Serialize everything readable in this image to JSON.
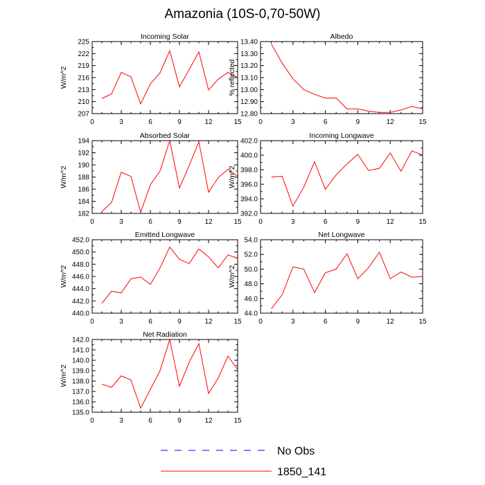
{
  "title": "Amazonia (10S-0,70-50W)",
  "colors": {
    "model": "#ff0000",
    "obs": "#0000ff",
    "axis": "#000000"
  },
  "legend": [
    {
      "label": "No Obs",
      "style": "dashed",
      "color": "#0000ff"
    },
    {
      "label": "1850_141",
      "style": "solid",
      "color": "#ff0000"
    }
  ],
  "chart_data": [
    {
      "type": "line",
      "title": "Incoming Solar",
      "ylabel": "W/m^2",
      "ylim": [
        207,
        225
      ],
      "yticks": [
        "207",
        "210",
        "213",
        "216",
        "219",
        "222",
        "225"
      ],
      "xlim": [
        0,
        15
      ],
      "xticks": [
        "0",
        "3",
        "6",
        "9",
        "12",
        "15"
      ],
      "x": [
        1,
        2,
        3,
        4,
        5,
        6,
        7,
        8,
        9,
        10,
        11,
        12,
        13,
        14,
        15
      ],
      "series": [
        {
          "values": [
            210.8,
            211.9,
            217.3,
            216.2,
            209.4,
            214.4,
            217.2,
            222.7,
            213.7,
            218.0,
            222.4,
            212.9,
            215.6,
            217.3,
            216.0
          ]
        }
      ]
    },
    {
      "type": "line",
      "title": "Albedo",
      "ylabel": "% reflected",
      "ylim": [
        12.8,
        13.4
      ],
      "yticks": [
        "12.80",
        "12.90",
        "13.00",
        "13.10",
        "13.20",
        "13.30",
        "13.40"
      ],
      "xlim": [
        0,
        15
      ],
      "xticks": [
        "0",
        "3",
        "6",
        "9",
        "12",
        "15"
      ],
      "x": [
        1,
        2,
        3,
        4,
        5,
        6,
        7,
        8,
        9,
        10,
        11,
        12,
        13,
        14,
        15
      ],
      "series": [
        {
          "values": [
            13.38,
            13.22,
            13.09,
            13.0,
            12.96,
            12.93,
            12.93,
            12.84,
            12.84,
            12.82,
            12.81,
            12.81,
            12.83,
            12.86,
            12.84
          ]
        }
      ]
    },
    {
      "type": "line",
      "title": "Absorbed Solar",
      "ylabel": "W/m^2",
      "ylim": [
        182,
        194
      ],
      "yticks": [
        "182",
        "184",
        "186",
        "188",
        "190",
        "192",
        "194"
      ],
      "xlim": [
        0,
        15
      ],
      "xticks": [
        "0",
        "3",
        "6",
        "9",
        "12",
        "15"
      ],
      "x": [
        1,
        2,
        3,
        4,
        5,
        6,
        7,
        8,
        9,
        10,
        11,
        12,
        13,
        14,
        15
      ],
      "series": [
        {
          "values": [
            182.3,
            183.8,
            188.8,
            188.1,
            182.2,
            186.7,
            189.0,
            194.0,
            186.2,
            189.9,
            193.8,
            185.5,
            187.9,
            189.3,
            188.1
          ]
        }
      ]
    },
    {
      "type": "line",
      "title": "Incoming Longwave",
      "ylabel": "W/m^2",
      "ylim": [
        392,
        402
      ],
      "yticks": [
        "392.0",
        "394.0",
        "396.0",
        "398.0",
        "400.0",
        "402.0"
      ],
      "xlim": [
        0,
        15
      ],
      "xticks": [
        "0",
        "3",
        "6",
        "9",
        "12",
        "15"
      ],
      "x": [
        1,
        2,
        3,
        4,
        5,
        6,
        7,
        8,
        9,
        10,
        11,
        12,
        13,
        14,
        15
      ],
      "series": [
        {
          "values": [
            397.0,
            397.1,
            393.0,
            395.6,
            399.1,
            395.3,
            397.3,
            398.8,
            400.1,
            397.9,
            398.2,
            400.3,
            397.8,
            400.6,
            400.0
          ]
        }
      ]
    },
    {
      "type": "line",
      "title": "Emitted Longwave",
      "ylabel": "W/m^2",
      "ylim": [
        440,
        452
      ],
      "yticks": [
        "440.0",
        "442.0",
        "444.0",
        "446.0",
        "448.0",
        "450.0",
        "452.0"
      ],
      "xlim": [
        0,
        15
      ],
      "xticks": [
        "0",
        "3",
        "6",
        "9",
        "12",
        "15"
      ],
      "x": [
        1,
        2,
        3,
        4,
        5,
        6,
        7,
        8,
        9,
        10,
        11,
        12,
        13,
        14,
        15
      ],
      "series": [
        {
          "values": [
            441.6,
            443.6,
            443.3,
            445.6,
            445.9,
            444.7,
            447.4,
            450.8,
            448.8,
            448.1,
            450.5,
            449.2,
            447.4,
            449.5,
            449.0
          ]
        }
      ]
    },
    {
      "type": "line",
      "title": "Net Longwave",
      "ylabel": "W/m^2",
      "ylim": [
        44,
        54
      ],
      "yticks": [
        "44.0",
        "46.0",
        "48.0",
        "50.0",
        "52.0",
        "54.0"
      ],
      "xlim": [
        0,
        15
      ],
      "xticks": [
        "0",
        "3",
        "6",
        "9",
        "12",
        "15"
      ],
      "x": [
        1,
        2,
        3,
        4,
        5,
        6,
        7,
        8,
        9,
        10,
        11,
        12,
        13,
        14,
        15
      ],
      "series": [
        {
          "values": [
            44.6,
            46.5,
            50.3,
            50.0,
            46.8,
            49.5,
            50.0,
            52.1,
            48.7,
            50.2,
            52.3,
            48.7,
            49.6,
            48.9,
            49.0
          ]
        }
      ]
    },
    {
      "type": "line",
      "title": "Net Radiation",
      "ylabel": "W/m^2",
      "ylim": [
        135,
        142
      ],
      "yticks": [
        "135.0",
        "136.0",
        "137.0",
        "138.0",
        "139.0",
        "140.0",
        "141.0",
        "142.0"
      ],
      "xlim": [
        0,
        15
      ],
      "xticks": [
        "0",
        "3",
        "6",
        "9",
        "12",
        "15"
      ],
      "x": [
        1,
        2,
        3,
        4,
        5,
        6,
        7,
        8,
        9,
        10,
        11,
        12,
        13,
        14,
        15
      ],
      "series": [
        {
          "values": [
            137.7,
            137.4,
            138.5,
            138.1,
            135.4,
            137.2,
            139.0,
            142.0,
            137.5,
            139.8,
            141.6,
            136.8,
            138.3,
            140.4,
            139.1
          ]
        }
      ]
    }
  ]
}
